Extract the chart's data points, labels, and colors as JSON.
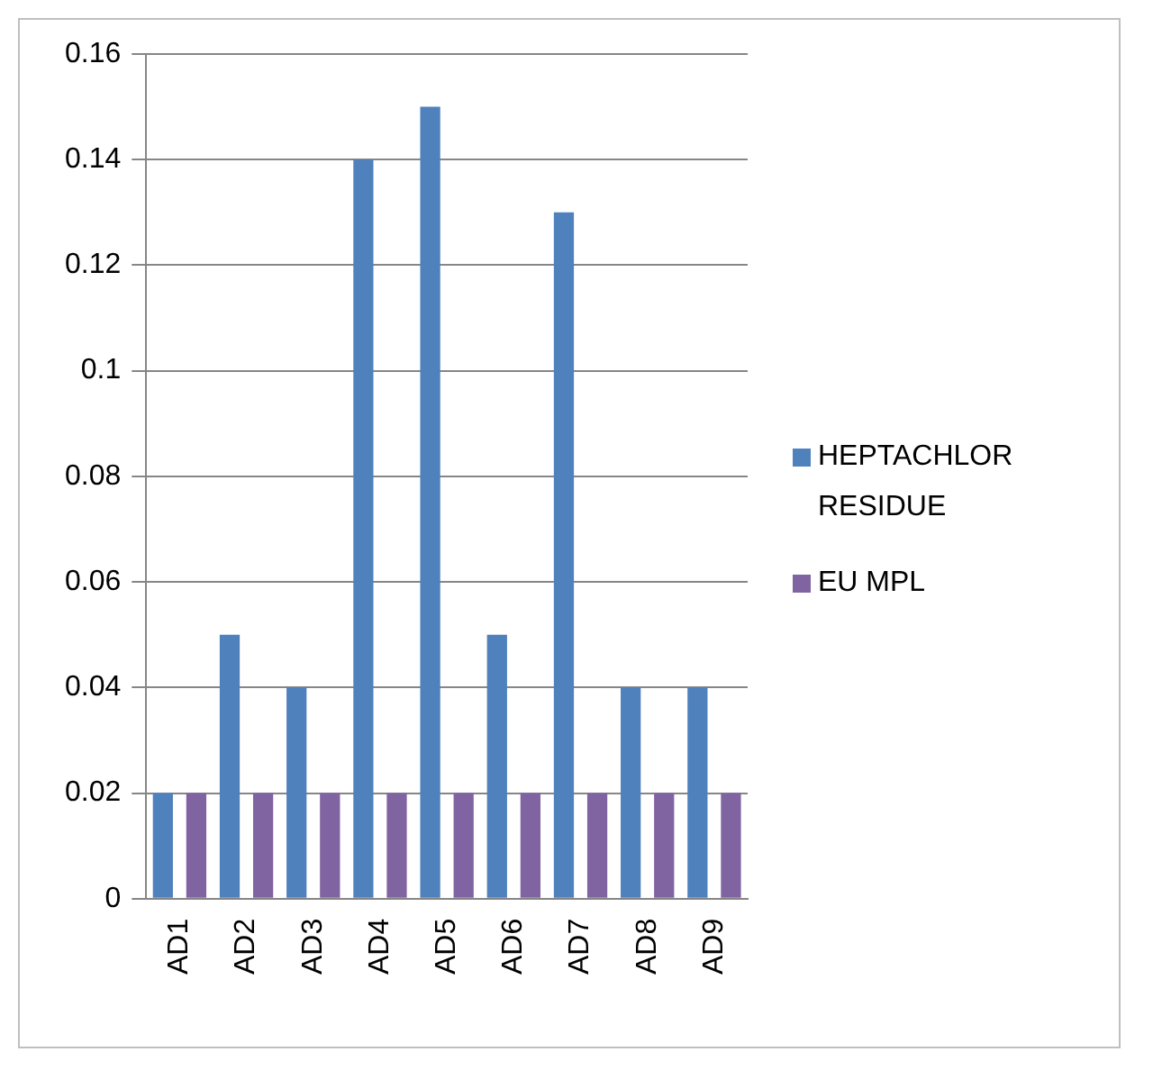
{
  "chart_data": {
    "type": "bar",
    "categories": [
      "AD1",
      "AD2",
      "AD3",
      "AD4",
      "AD5",
      "AD6",
      "AD7",
      "AD8",
      "AD9"
    ],
    "series": [
      {
        "name": "HEPTACHLOR RESIDUE",
        "color": "#4f81bd",
        "values": [
          0.02,
          0.05,
          0.04,
          0.14,
          0.15,
          0.05,
          0.13,
          0.04,
          0.04
        ]
      },
      {
        "name": "EU MPL",
        "color": "#8064a2",
        "values": [
          0.02,
          0.02,
          0.02,
          0.02,
          0.02,
          0.02,
          0.02,
          0.02,
          0.02
        ]
      }
    ],
    "ylim": [
      0,
      0.16
    ],
    "yticks": [
      0,
      0.02,
      0.04,
      0.06,
      0.08,
      0.1,
      0.12,
      0.14,
      0.16
    ],
    "grid": "y",
    "legend": "right"
  }
}
